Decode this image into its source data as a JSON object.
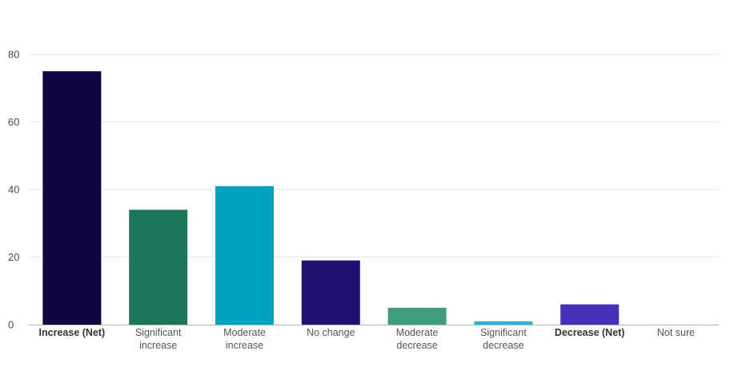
{
  "chart_data": {
    "type": "bar",
    "title": "",
    "xlabel": "",
    "ylabel": "",
    "ylim": [
      0,
      80
    ],
    "yticks": [
      0,
      20,
      40,
      60,
      80
    ],
    "grid": true,
    "legend": "none",
    "categories": [
      "Increase (Net)",
      "Significant increase",
      "Moderate increase",
      "No change",
      "Moderate decrease",
      "Significant decrease",
      "Decrease (Net)",
      "Not sure"
    ],
    "category_lines": [
      [
        "Increase (Net)"
      ],
      [
        "Significant",
        "increase"
      ],
      [
        "Moderate",
        "increase"
      ],
      [
        "No change"
      ],
      [
        "Moderate",
        "decrease"
      ],
      [
        "Significant",
        "decrease"
      ],
      [
        "Decrease (Net)"
      ],
      [
        "Not sure"
      ]
    ],
    "bold_categories": [
      "Increase (Net)",
      "Decrease (Net)"
    ],
    "values": [
      75,
      34,
      41,
      19,
      5,
      1,
      6,
      0
    ],
    "colors": [
      "#0f0641",
      "#1b765c",
      "#00a2c0",
      "#221170",
      "#3f9d7b",
      "#2bb3d9",
      "#4631bd",
      "#cccccc"
    ]
  }
}
